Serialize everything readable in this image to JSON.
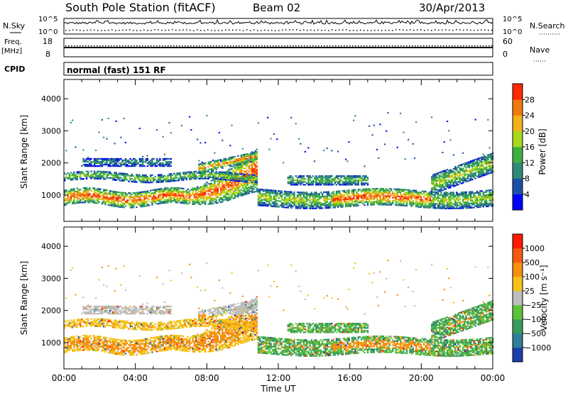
{
  "header": {
    "station": "South Pole Station (fitACF)",
    "beam": "Beam 02",
    "date": "30/Apr/2013"
  },
  "top_panels": {
    "nsky_label": "N.Sky",
    "nsky_ticks": [
      "10^5",
      "10^0"
    ],
    "nsearch_label": "N.Search",
    "nsearch_ticks": [
      "10^5",
      "10^0"
    ],
    "freq_label_1": "Freq.",
    "freq_label_2": "[MHz]",
    "freq_ticks": [
      "18",
      "8"
    ],
    "nave_label": "Nave",
    "nave_ticks": [
      "60",
      "0"
    ],
    "cpid_label": "CPID",
    "cpid_value": "normal (fast) 151 RF"
  },
  "chart_data": [
    {
      "type": "heatmap",
      "name": "power",
      "ylabel": "Slant Range [km]",
      "xlabel": "Time UT",
      "ylim": [
        180,
        4600
      ],
      "y_ticks": [
        "1000",
        "2000",
        "3000",
        "4000"
      ],
      "x_ticks": [
        "00:00",
        "04:00",
        "08:00",
        "12:00",
        "16:00",
        "20:00",
        "00:00"
      ],
      "colorbar": {
        "label": "Power [dB]",
        "ticks": [
          "4",
          "8",
          "12",
          "16",
          "20",
          "24",
          "28"
        ],
        "colors": [
          "#0000ff",
          "#1e4fa8",
          "#2f8a78",
          "#3fae3f",
          "#a8d81e",
          "#f0b21a",
          "#f07a10",
          "#ff2a00"
        ]
      }
    },
    {
      "type": "heatmap",
      "name": "velocity",
      "ylabel": "Slant Range [km]",
      "xlabel": "Time UT",
      "ylim": [
        180,
        4600
      ],
      "y_ticks": [
        "1000",
        "2000",
        "3000",
        "4000"
      ],
      "x_ticks": [
        "00:00",
        "04:00",
        "08:00",
        "12:00",
        "16:00",
        "20:00",
        "00:00"
      ],
      "colorbar": {
        "label": "Velocity [m s⁻¹]",
        "ticks": [
          "1000",
          "500",
          "100",
          "25",
          "−25",
          "−100",
          "−500",
          "−1000"
        ],
        "colors": [
          "#1a3fa8",
          "#2f7e9a",
          "#3a9a5c",
          "#5cc43a",
          "#bdbdbd",
          "#f5c21a",
          "#f5900f",
          "#f55a10",
          "#ff1a00"
        ]
      }
    }
  ]
}
